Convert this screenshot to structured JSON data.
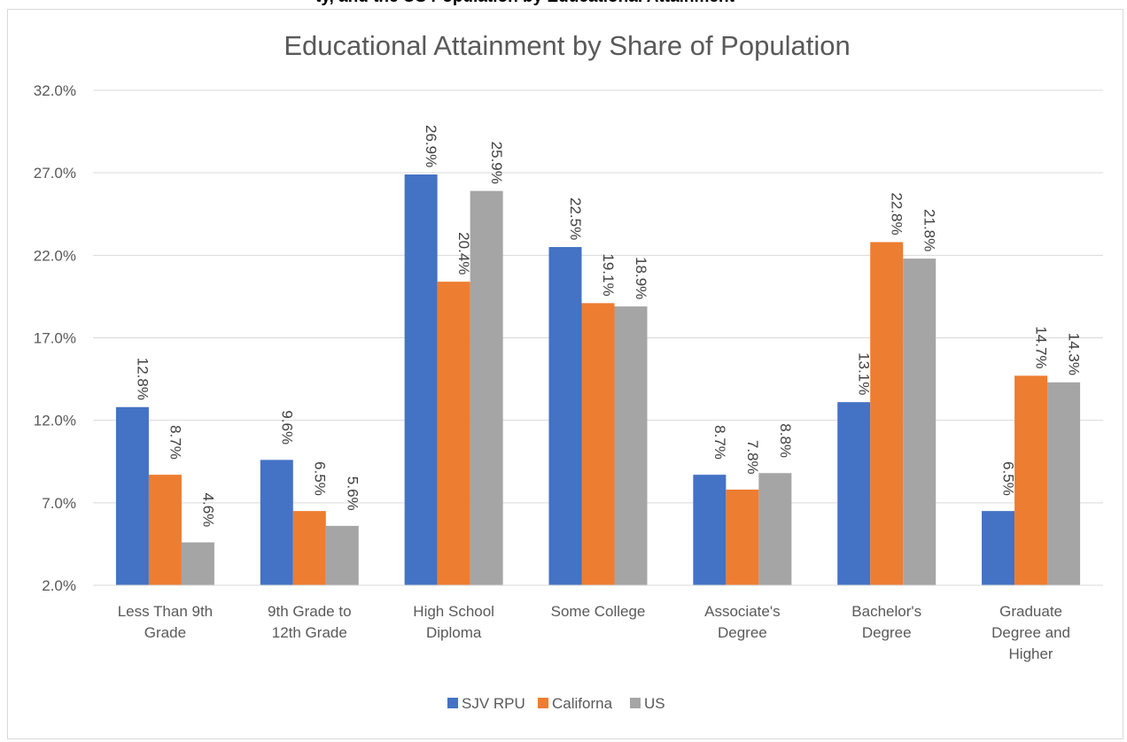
{
  "header_fragment": "ty, and the US Population by Educational Attainment",
  "chart_data": {
    "type": "bar",
    "title": "Educational Attainment by Share of Population",
    "xlabel": "",
    "ylabel": "",
    "categories": [
      [
        "Less Than 9th",
        "Grade"
      ],
      [
        "9th Grade to",
        "12th Grade"
      ],
      [
        "High School",
        "Diploma"
      ],
      [
        "Some College"
      ],
      [
        "Associate's",
        "Degree"
      ],
      [
        "Bachelor's",
        "Degree"
      ],
      [
        "Graduate",
        "Degree and",
        "Higher"
      ]
    ],
    "series": [
      {
        "name": "SJV RPU",
        "color": "#4472c4",
        "values": [
          12.8,
          9.6,
          26.9,
          22.5,
          8.7,
          13.1,
          6.5
        ]
      },
      {
        "name": "Californa",
        "color": "#ed7d31",
        "values": [
          8.7,
          6.5,
          20.4,
          19.1,
          7.8,
          22.8,
          14.7
        ]
      },
      {
        "name": "US",
        "color": "#a5a5a5",
        "values": [
          4.6,
          5.6,
          25.9,
          18.9,
          8.8,
          21.8,
          14.3
        ]
      }
    ],
    "ylim": [
      2.0,
      32.0
    ],
    "yticks": [
      2.0,
      7.0,
      12.0,
      17.0,
      22.0,
      27.0,
      32.0
    ],
    "ytick_labels": [
      "2.0%",
      "7.0%",
      "12.0%",
      "17.0%",
      "22.0%",
      "27.0%",
      "32.0%"
    ],
    "grid": true,
    "gridline_color": "#d9d9d9",
    "legend_position": "bottom",
    "data_labels": true,
    "data_label_rotation": "vertical"
  }
}
